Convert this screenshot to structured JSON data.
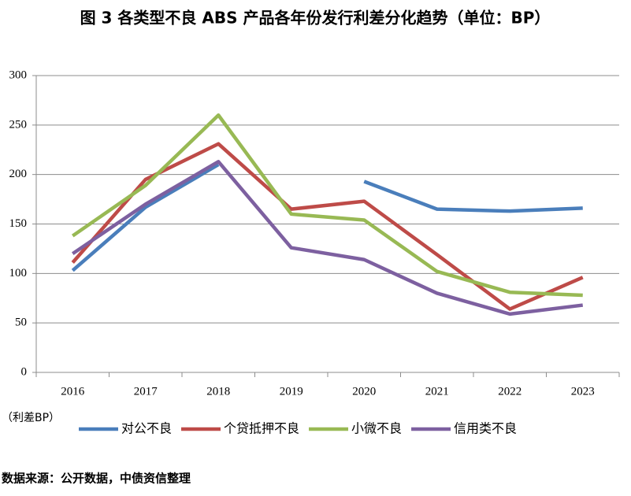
{
  "chart_data": {
    "type": "line",
    "title": "图 3  各类型不良 ABS 产品各年份发行利差分化趋势（单位：BP）",
    "y_label": "（利差BP）",
    "source": "数据来源：公开数据，中债资信整理",
    "categories": [
      "2016",
      "2017",
      "2018",
      "2019",
      "2020",
      "2021",
      "2022",
      "2023"
    ],
    "series": [
      {
        "name": "对公不良",
        "color": "#4a7ebb",
        "values": [
          103,
          167,
          210,
          null,
          193,
          165,
          163,
          166
        ]
      },
      {
        "name": "个贷抵押不良",
        "color": "#be4b48",
        "values": [
          111,
          195,
          231,
          165,
          173,
          119,
          64,
          96
        ]
      },
      {
        "name": "小微不良",
        "color": "#98b954",
        "values": [
          138,
          189,
          260,
          160,
          154,
          102,
          81,
          78
        ]
      },
      {
        "name": "信用类不良",
        "color": "#7d60a0",
        "values": [
          120,
          170,
          213,
          126,
          114,
          80,
          59,
          68
        ]
      }
    ],
    "ylim": [
      0,
      300
    ],
    "yticks": [
      0,
      50,
      100,
      150,
      200,
      250,
      300
    ],
    "grid": true,
    "legend": "bottom"
  }
}
